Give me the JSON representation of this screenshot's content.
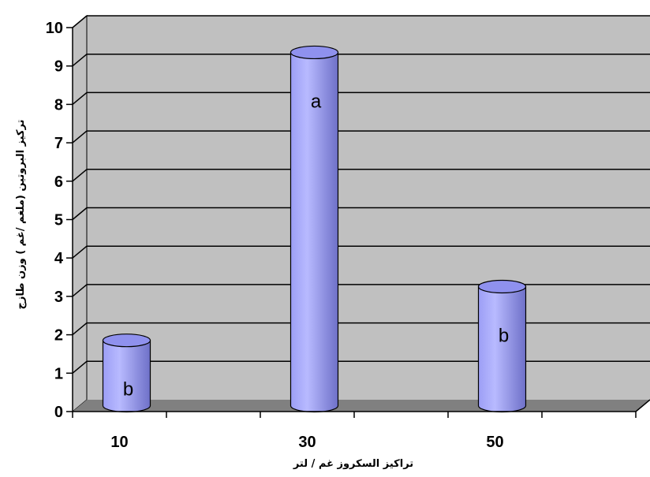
{
  "chart_data": {
    "type": "bar",
    "categories": [
      "10",
      "30",
      "50"
    ],
    "values": [
      1.7,
      9.2,
      3.1
    ],
    "bar_labels": [
      "b",
      "a",
      "b"
    ],
    "y_ticks": [
      "0",
      "1",
      "2",
      "3",
      "4",
      "5",
      "6",
      "7",
      "8",
      "9",
      "10"
    ],
    "ylim": [
      0,
      10
    ],
    "xlabel": "تراكيز السكروز غم / لتر",
    "ylabel": "تركيز البروتين (ملغم /غم ) وزن طازج",
    "grid": true,
    "legend": "none",
    "colors": {
      "wall": "#c0c0c0",
      "floor": "#808080",
      "bar_light": "#b8baff",
      "bar_mid": "#9c9ef5",
      "bar_dark": "#6e70c8",
      "bar_top": "#8f91ee",
      "grid": "#000000"
    }
  }
}
